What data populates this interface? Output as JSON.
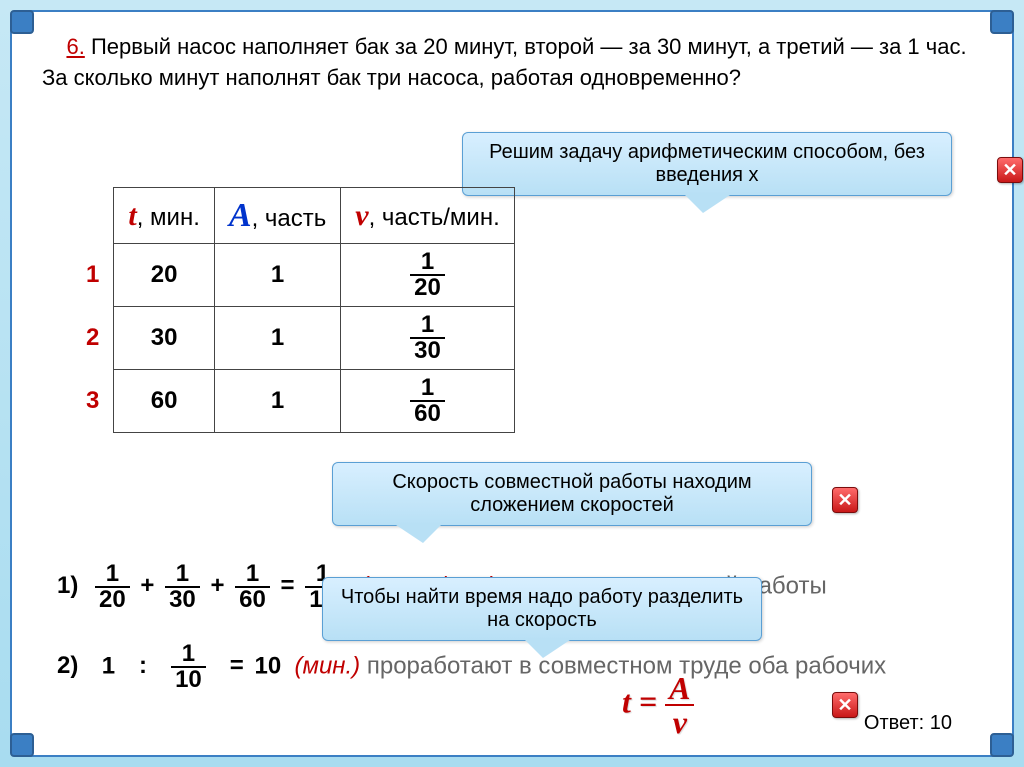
{
  "problem": {
    "number": "6.",
    "text": "Первый насос наполняет бак за 20 минут, второй — за 30 минут, а третий — за 1 час. За сколько минут наполнят бак три насоса, работая одновременно?"
  },
  "callouts": {
    "c1": "Решим задачу арифметическим способом, без введения x",
    "c2": "Скорость совместной работы находим сложением скоростей",
    "c3": "Чтобы найти время надо работу разделить на скорость"
  },
  "table": {
    "headers": {
      "t_sym": "t",
      "t_unit": ", мин.",
      "a_sym": "А",
      "a_unit": ", часть",
      "v_sym": "v",
      "v_unit": ", часть/мин."
    },
    "rows": [
      {
        "label": "1",
        "t": "20",
        "a": "1",
        "vn": "1",
        "vd": "20"
      },
      {
        "label": "2",
        "t": "30",
        "a": "1",
        "vn": "1",
        "vd": "30"
      },
      {
        "label": "3",
        "t": "60",
        "a": "1",
        "vn": "1",
        "vd": "60"
      }
    ]
  },
  "equations": {
    "eq1": {
      "label": "1)",
      "f1n": "1",
      "f1d": "20",
      "f2n": "1",
      "f2d": "30",
      "f3n": "1",
      "f3d": "60",
      "rn": "1",
      "rd": "10",
      "note_red": "(часть/мин)",
      "note_grey": " скорость совместной работы"
    },
    "eq2": {
      "label": "2)",
      "lhs": "1",
      "div_n": "1",
      "div_d": "10",
      "result": "10",
      "note_red": "(мин.)",
      "note_grey": " проработают в совместном труде оба рабочих"
    }
  },
  "formula": {
    "lhs": "t",
    "eq": " = ",
    "num": "A",
    "den": "v"
  },
  "answer_label": "Ответ: ",
  "answer_value": "10",
  "close": "✕",
  "colors": {
    "bg_top": "#c6e8f5",
    "bg_bot": "#a8dcf0",
    "frame": "#3b7fc4",
    "red": "#c00000",
    "blue": "#0033cc",
    "callout_top": "#d8efff",
    "callout_bot": "#b8e0f5"
  }
}
